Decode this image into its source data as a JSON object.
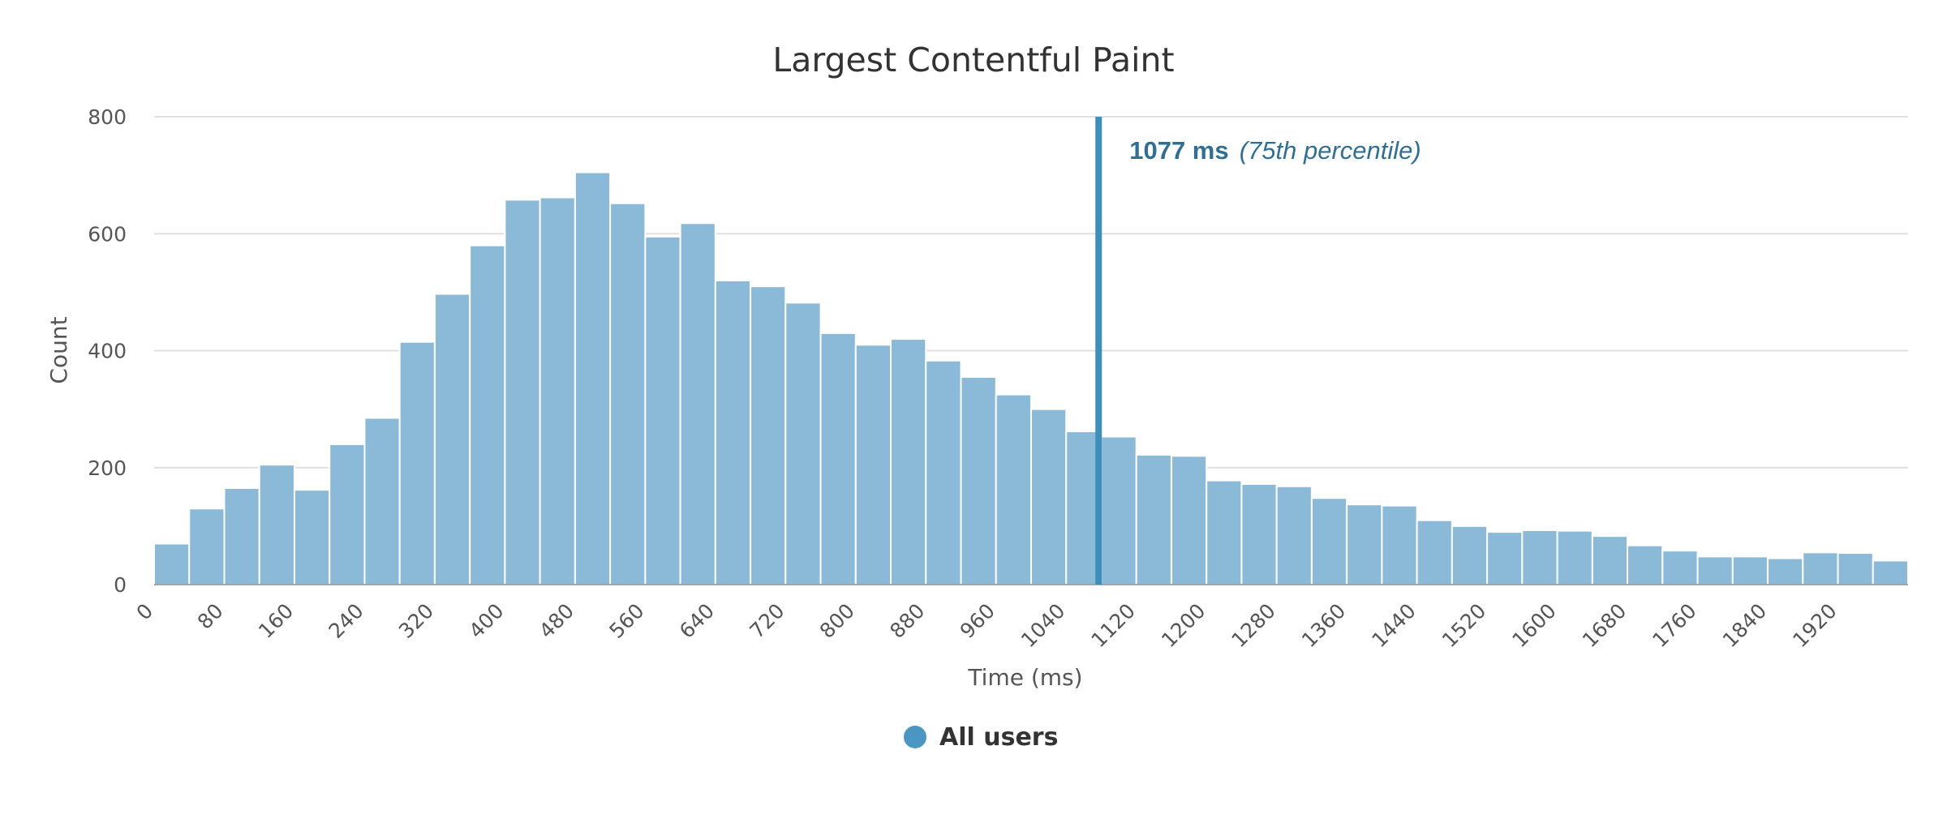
{
  "chart_data": {
    "type": "bar",
    "title": "Largest Contentful Paint",
    "xlabel": "Time (ms)",
    "ylabel": "Count",
    "bin_width": 40,
    "x_range": [
      0,
      2000
    ],
    "y_range": [
      0,
      800
    ],
    "y_ticks": [
      0,
      200,
      400,
      600,
      800
    ],
    "x_ticks": [
      0,
      80,
      160,
      240,
      320,
      400,
      480,
      560,
      640,
      720,
      800,
      880,
      960,
      1040,
      1120,
      1200,
      1280,
      1360,
      1440,
      1520,
      1600,
      1680,
      1760,
      1840,
      1920
    ],
    "grid": true,
    "series": [
      {
        "name": "All users",
        "bin_starts": [
          0,
          40,
          80,
          120,
          160,
          200,
          240,
          280,
          320,
          360,
          400,
          440,
          480,
          520,
          560,
          600,
          640,
          680,
          720,
          760,
          800,
          840,
          880,
          920,
          960,
          1000,
          1040,
          1080,
          1120,
          1160,
          1200,
          1240,
          1280,
          1320,
          1360,
          1400,
          1440,
          1480,
          1520,
          1560,
          1600,
          1640,
          1680,
          1720,
          1760,
          1800,
          1840,
          1880,
          1920,
          1960
        ],
        "values": [
          70,
          130,
          165,
          205,
          162,
          240,
          285,
          415,
          497,
          580,
          658,
          662,
          705,
          652,
          595,
          618,
          520,
          510,
          482,
          430,
          410,
          420,
          383,
          355,
          325,
          300,
          262,
          253,
          222,
          220,
          178,
          172,
          168,
          148,
          137,
          135,
          110,
          100,
          90,
          93,
          92,
          83,
          67,
          58,
          48,
          48,
          45,
          55,
          54,
          41
        ],
        "color": "#8bbad8"
      }
    ],
    "annotations": [
      {
        "x": 1077,
        "value_text": "1077 ms",
        "note_text": "(75th percentile)",
        "color": "#3d8fbb"
      }
    ],
    "legend": {
      "position": "bottom-center",
      "items": [
        {
          "label": "All users",
          "color": "#4b97c4"
        }
      ]
    }
  }
}
